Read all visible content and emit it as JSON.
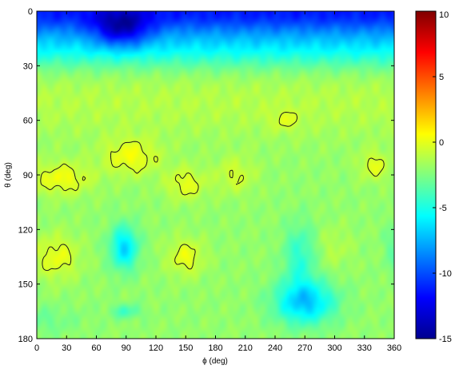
{
  "chart_data": {
    "type": "heatmap",
    "title": "",
    "xlabel": "ϕ (deg)",
    "ylabel": "θ (deg)",
    "xlim": [
      0,
      360
    ],
    "ylim": [
      180,
      0
    ],
    "x_ticks": [
      0,
      30,
      60,
      90,
      120,
      150,
      180,
      210,
      240,
      270,
      300,
      330,
      360
    ],
    "y_ticks": [
      0,
      30,
      60,
      90,
      120,
      150,
      180
    ],
    "colorbar": {
      "colormap": "jet",
      "range": [
        -15,
        10
      ],
      "ticks": [
        10,
        5,
        0,
        -5,
        -10,
        -15
      ]
    },
    "background_level": -2,
    "features": [
      {
        "kind": "minimum",
        "phi": 85,
        "theta": 10,
        "value": -15
      },
      {
        "kind": "minimum",
        "phi": 270,
        "theta": 160,
        "value": -7
      },
      {
        "kind": "minimum",
        "phi": 88,
        "theta": 130,
        "value": -7
      },
      {
        "kind": "maximum",
        "phi": 25,
        "theta": 92,
        "value": 0.5
      },
      {
        "kind": "maximum",
        "phi": 95,
        "theta": 80,
        "value": 0.5
      },
      {
        "kind": "maximum",
        "phi": 150,
        "theta": 95,
        "value": 0.5
      },
      {
        "kind": "maximum",
        "phi": 20,
        "theta": 135,
        "value": 0.5
      },
      {
        "kind": "maximum",
        "phi": 150,
        "theta": 135,
        "value": 0.5
      },
      {
        "kind": "maximum",
        "phi": 340,
        "theta": 85,
        "value": 0.5
      }
    ],
    "contour_level": -0.5,
    "grid": false,
    "legend": "none"
  }
}
